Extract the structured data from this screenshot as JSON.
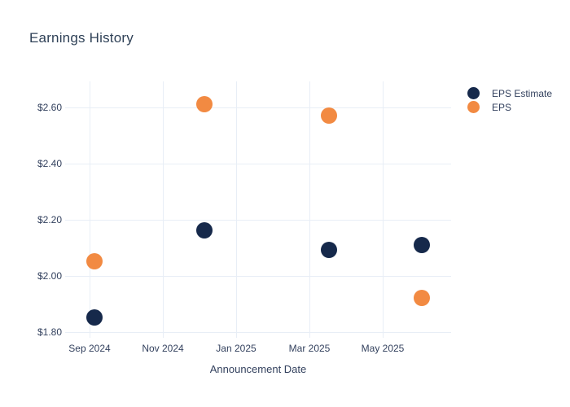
{
  "title": "Earnings History",
  "chart_data": {
    "type": "scatter",
    "title": "Earnings History",
    "xlabel": "Announcement Date",
    "ylabel": "",
    "grid": true,
    "legend_position": "right",
    "x_ticks": [
      {
        "label": "Sep 2024",
        "date": "2024-09-01"
      },
      {
        "label": "Nov 2024",
        "date": "2024-11-01"
      },
      {
        "label": "Jan 2025",
        "date": "2025-01-01"
      },
      {
        "label": "Mar 2025",
        "date": "2025-03-01"
      },
      {
        "label": "May 2025",
        "date": "2025-05-01"
      }
    ],
    "y_ticks": [
      {
        "label": "$2.60",
        "value": 2.6
      },
      {
        "label": "$2.40",
        "value": 2.4
      },
      {
        "label": "$2.20",
        "value": 2.2
      },
      {
        "label": "$2.00",
        "value": 2.0
      },
      {
        "label": "$1.80",
        "value": 1.8
      }
    ],
    "ylim": [
      1.77,
      2.69
    ],
    "series": [
      {
        "name": "EPS Estimate",
        "color": "#16294B",
        "points": [
          {
            "date": "2024-09-05",
            "value": 1.85
          },
          {
            "date": "2024-12-05",
            "value": 2.16
          },
          {
            "date": "2025-03-17",
            "value": 2.09
          },
          {
            "date": "2025-06-03",
            "value": 2.11
          }
        ]
      },
      {
        "name": "EPS",
        "color": "#F28A42",
        "points": [
          {
            "date": "2024-09-05",
            "value": 2.05
          },
          {
            "date": "2024-12-05",
            "value": 2.61
          },
          {
            "date": "2025-03-17",
            "value": 2.57
          },
          {
            "date": "2025-06-03",
            "value": 1.92
          }
        ]
      }
    ],
    "colors": {
      "grid": "#E8EEF6",
      "axis_text": "#33415E",
      "title_text": "#2F4157",
      "background": "#FFFFFF"
    }
  }
}
